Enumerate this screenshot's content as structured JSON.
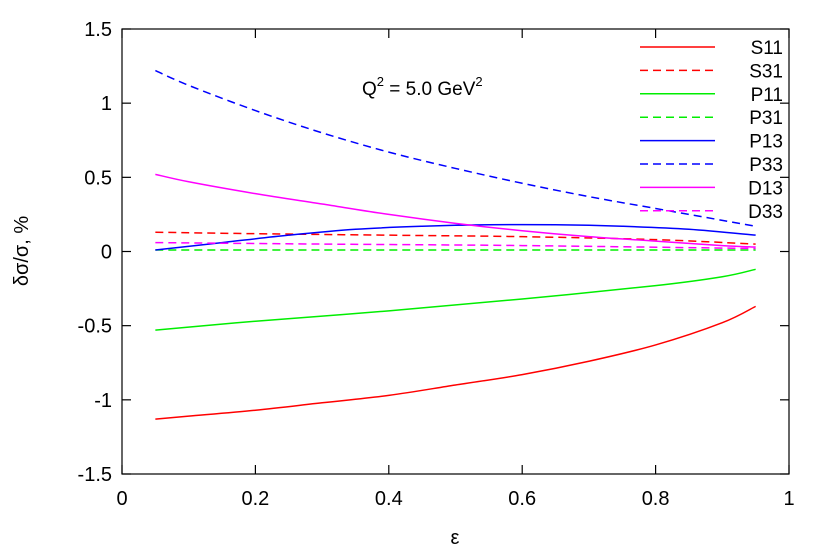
{
  "chart_data": {
    "type": "line",
    "title": "",
    "xlabel": "ε",
    "ylabel": "δσ/σ, %",
    "xlim": [
      0,
      1
    ],
    "ylim": [
      -1.5,
      1.5
    ],
    "x_ticks": [
      0,
      0.2,
      0.4,
      0.6,
      0.8,
      1
    ],
    "x_tick_labels": [
      "0",
      "0.2",
      "0.4",
      "0.6",
      "0.8",
      "1"
    ],
    "y_ticks": [
      -1.5,
      -1,
      -0.5,
      0,
      0.5,
      1,
      1.5
    ],
    "y_tick_labels": [
      "-1.5",
      "-1",
      "-0.5",
      "0",
      "0.5",
      "1",
      "1.5"
    ],
    "grid": false,
    "legend_position": "top-right",
    "annotation": {
      "q": "Q",
      "q_sup": "2",
      "mid": " = 5.0 GeV",
      "gev_sup": "2"
    },
    "series": [
      {
        "name": "S11",
        "color": "#ff0000",
        "dashed": false,
        "x": [
          0.05,
          0.1,
          0.2,
          0.3,
          0.4,
          0.5,
          0.6,
          0.7,
          0.8,
          0.9,
          0.95
        ],
        "y": [
          -1.13,
          -1.11,
          -1.07,
          -1.02,
          -0.97,
          -0.9,
          -0.83,
          -0.74,
          -0.63,
          -0.48,
          -0.37
        ]
      },
      {
        "name": "S31",
        "color": "#ff0000",
        "dashed": true,
        "x": [
          0.05,
          0.2,
          0.4,
          0.6,
          0.8,
          0.95
        ],
        "y": [
          0.13,
          0.12,
          0.11,
          0.1,
          0.08,
          0.05
        ]
      },
      {
        "name": "P11",
        "color": "#00ee00",
        "dashed": false,
        "x": [
          0.05,
          0.2,
          0.4,
          0.6,
          0.8,
          0.9,
          0.95
        ],
        "y": [
          -0.53,
          -0.47,
          -0.4,
          -0.32,
          -0.23,
          -0.17,
          -0.12
        ]
      },
      {
        "name": "P31",
        "color": "#00ee00",
        "dashed": true,
        "x": [
          0.05,
          0.3,
          0.6,
          0.95
        ],
        "y": [
          0.01,
          0.01,
          0.01,
          0.01
        ]
      },
      {
        "name": "P13",
        "color": "#0000ff",
        "dashed": false,
        "x": [
          0.05,
          0.15,
          0.25,
          0.35,
          0.45,
          0.55,
          0.65,
          0.75,
          0.85,
          0.95
        ],
        "y": [
          0.01,
          0.06,
          0.11,
          0.15,
          0.17,
          0.18,
          0.18,
          0.17,
          0.15,
          0.11
        ]
      },
      {
        "name": "P33",
        "color": "#0000ff",
        "dashed": true,
        "x": [
          0.05,
          0.1,
          0.2,
          0.3,
          0.4,
          0.5,
          0.6,
          0.7,
          0.8,
          0.9,
          0.95
        ],
        "y": [
          1.22,
          1.12,
          0.95,
          0.8,
          0.67,
          0.56,
          0.46,
          0.37,
          0.29,
          0.21,
          0.17
        ]
      },
      {
        "name": "D13",
        "color": "#ff00ff",
        "dashed": false,
        "x": [
          0.05,
          0.1,
          0.2,
          0.3,
          0.4,
          0.5,
          0.6,
          0.7,
          0.8,
          0.9,
          0.95
        ],
        "y": [
          0.52,
          0.47,
          0.39,
          0.32,
          0.25,
          0.19,
          0.14,
          0.1,
          0.07,
          0.04,
          0.03
        ]
      },
      {
        "name": "D33",
        "color": "#ff00ff",
        "dashed": true,
        "x": [
          0.05,
          0.3,
          0.6,
          0.95
        ],
        "y": [
          0.06,
          0.05,
          0.04,
          0.02
        ]
      }
    ]
  }
}
